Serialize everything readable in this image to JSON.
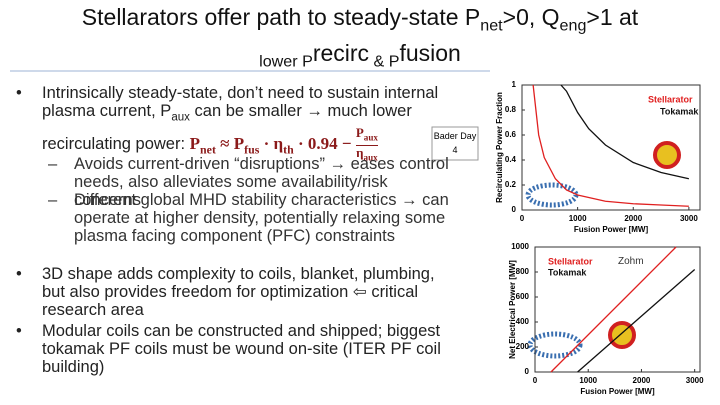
{
  "title": [
    "Stellarators offer path to steady-state P",
    "net",
    ">0, Q",
    "eng",
    ">1 at",
    "lower P",
    "recirc",
    " & P",
    "fusion"
  ],
  "bullets": [
    {
      "text": [
        "Intrinsically steady-state, don’t need to sustain internal plasma current, P",
        "aux",
        " can be smaller → much lower recirculating power:  "
      ],
      "formula": [
        "P",
        "net",
        " ≈ P",
        "fus",
        " · η",
        "th",
        " · 0.94 − "
      ],
      "fraction": {
        "numerator": [
          "P",
          "aux"
        ],
        "denominator": [
          "η",
          "aux"
        ]
      },
      "subbullets": [
        "Avoids current-driven “disruptions” → eases control needs, also alleviates some availability/risk concerns",
        "Different global MHD stability characteristics → can operate at higher density, potentially relaxing some plasma facing component (PFC) constraints"
      ]
    },
    {
      "text": [
        "3D shape adds complexity to coils, blanket, plumbing, but also provides freedom for optimization ⇦ critical research area"
      ]
    },
    {
      "text": [
        "Modular coils can be constructed and shipped; biggest tokamak PF coils must be wound on-site (ITER PF coil building)"
      ]
    }
  ],
  "notes": {
    "bader": "Bader Day 4",
    "zohm": "Zohm"
  },
  "chart_data": [
    {
      "type": "line",
      "x_label": "Fusion Power [MW]",
      "y_label": "Recirculating Power Fraction",
      "xlim": [
        0,
        3200
      ],
      "xticks": [
        0,
        1000,
        2000,
        3000
      ],
      "ylim": [
        0,
        1
      ],
      "yticks": [
        0,
        0.2,
        0.4,
        0.6,
        0.8,
        1
      ],
      "series": [
        {
          "name": "Stellarator",
          "color": "#e02020",
          "x": [
            200,
            300,
            400,
            600,
            800,
            1000,
            1500,
            2000,
            2500,
            3000
          ],
          "values": [
            1,
            0.6,
            0.42,
            0.25,
            0.16,
            0.12,
            0.07,
            0.05,
            0.04,
            0.03
          ]
        },
        {
          "name": "Tokamak",
          "color": "#111111",
          "x": [
            700,
            800,
            1000,
            1200,
            1500,
            2000,
            2500,
            3000
          ],
          "values": [
            1,
            0.95,
            0.78,
            0.65,
            0.52,
            0.38,
            0.3,
            0.25
          ]
        }
      ]
    },
    {
      "type": "line",
      "x_label": "Fusion Power [MW]",
      "y_label": "Net Electrical Power [MW]",
      "xlim": [
        0,
        3100
      ],
      "xticks": [
        0,
        1000,
        2000,
        3000
      ],
      "ylim": [
        0,
        1000
      ],
      "yticks": [
        0,
        200,
        400,
        600,
        800,
        1000
      ],
      "series": [
        {
          "name": "Stellarator",
          "color": "#e02020",
          "x": [
            300,
            2650
          ],
          "values": [
            0,
            1000
          ]
        },
        {
          "name": "Tokamak",
          "color": "#111111",
          "x": [
            800,
            3000
          ],
          "values": [
            0,
            820
          ]
        }
      ]
    }
  ]
}
